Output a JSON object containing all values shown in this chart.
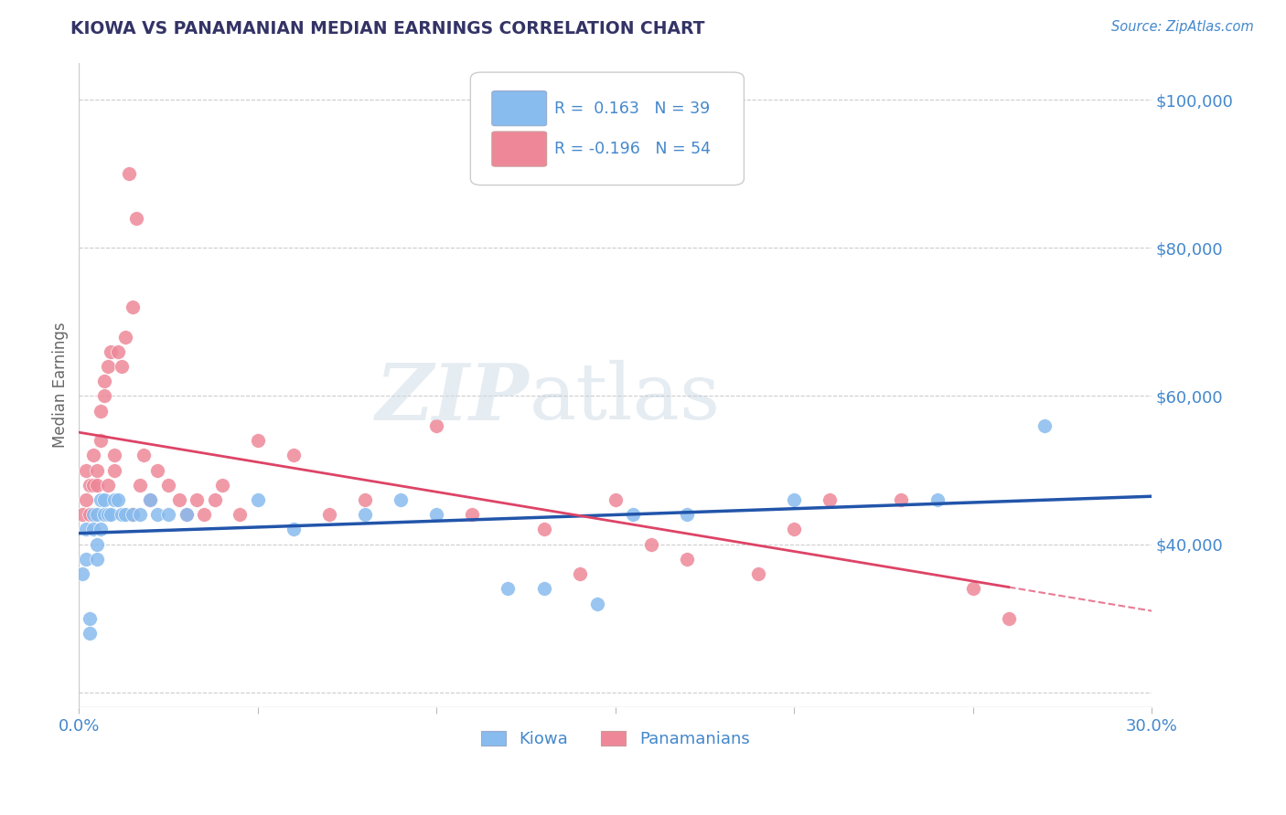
{
  "title": "KIOWA VS PANAMANIAN MEDIAN EARNINGS CORRELATION CHART",
  "source": "Source: ZipAtlas.com",
  "ylabel": "Median Earnings",
  "xmin": 0.0,
  "xmax": 0.3,
  "ymin": 18000,
  "ymax": 105000,
  "yticks": [
    20000,
    40000,
    60000,
    80000,
    100000
  ],
  "ytick_labels": [
    "",
    "$40,000",
    "$60,000",
    "$80,000",
    "$100,000"
  ],
  "xticks": [
    0.0,
    0.05,
    0.1,
    0.15,
    0.2,
    0.25,
    0.3
  ],
  "xtick_labels": [
    "0.0%",
    "",
    "",
    "",
    "",
    "",
    "30.0%"
  ],
  "kiowa_R": 0.163,
  "kiowa_N": 39,
  "pana_R": -0.196,
  "pana_N": 54,
  "kiowa_color": "#88bbee",
  "pana_color": "#ee8899",
  "kiowa_line_color": "#2255aa",
  "pana_line_color": "#dd4466",
  "background_color": "#ffffff",
  "grid_color": "#cccccc",
  "title_color": "#333366",
  "axis_color": "#4488cc",
  "kiowa_x": [
    0.001,
    0.002,
    0.002,
    0.003,
    0.003,
    0.004,
    0.004,
    0.005,
    0.005,
    0.005,
    0.006,
    0.006,
    0.007,
    0.007,
    0.008,
    0.009,
    0.01,
    0.011,
    0.012,
    0.013,
    0.015,
    0.017,
    0.02,
    0.022,
    0.025,
    0.03,
    0.05,
    0.06,
    0.08,
    0.09,
    0.1,
    0.12,
    0.13,
    0.145,
    0.155,
    0.17,
    0.2,
    0.24,
    0.27
  ],
  "kiowa_y": [
    36000,
    42000,
    38000,
    30000,
    28000,
    44000,
    42000,
    40000,
    38000,
    44000,
    46000,
    42000,
    46000,
    44000,
    44000,
    44000,
    46000,
    46000,
    44000,
    44000,
    44000,
    44000,
    46000,
    44000,
    44000,
    44000,
    46000,
    42000,
    44000,
    46000,
    44000,
    34000,
    34000,
    32000,
    44000,
    44000,
    46000,
    46000,
    56000
  ],
  "pana_x": [
    0.001,
    0.002,
    0.002,
    0.003,
    0.003,
    0.004,
    0.004,
    0.005,
    0.005,
    0.006,
    0.006,
    0.007,
    0.007,
    0.008,
    0.008,
    0.009,
    0.01,
    0.01,
    0.011,
    0.012,
    0.013,
    0.014,
    0.015,
    0.015,
    0.016,
    0.017,
    0.018,
    0.02,
    0.022,
    0.025,
    0.028,
    0.03,
    0.033,
    0.035,
    0.038,
    0.04,
    0.045,
    0.05,
    0.06,
    0.07,
    0.08,
    0.1,
    0.11,
    0.13,
    0.14,
    0.15,
    0.16,
    0.17,
    0.19,
    0.2,
    0.21,
    0.23,
    0.25,
    0.26
  ],
  "pana_y": [
    44000,
    46000,
    50000,
    48000,
    44000,
    52000,
    48000,
    50000,
    48000,
    58000,
    54000,
    60000,
    62000,
    64000,
    48000,
    66000,
    52000,
    50000,
    66000,
    64000,
    68000,
    90000,
    72000,
    44000,
    84000,
    48000,
    52000,
    46000,
    50000,
    48000,
    46000,
    44000,
    46000,
    44000,
    46000,
    48000,
    44000,
    54000,
    52000,
    44000,
    46000,
    56000,
    44000,
    42000,
    36000,
    46000,
    40000,
    38000,
    36000,
    42000,
    46000,
    46000,
    34000,
    30000
  ]
}
